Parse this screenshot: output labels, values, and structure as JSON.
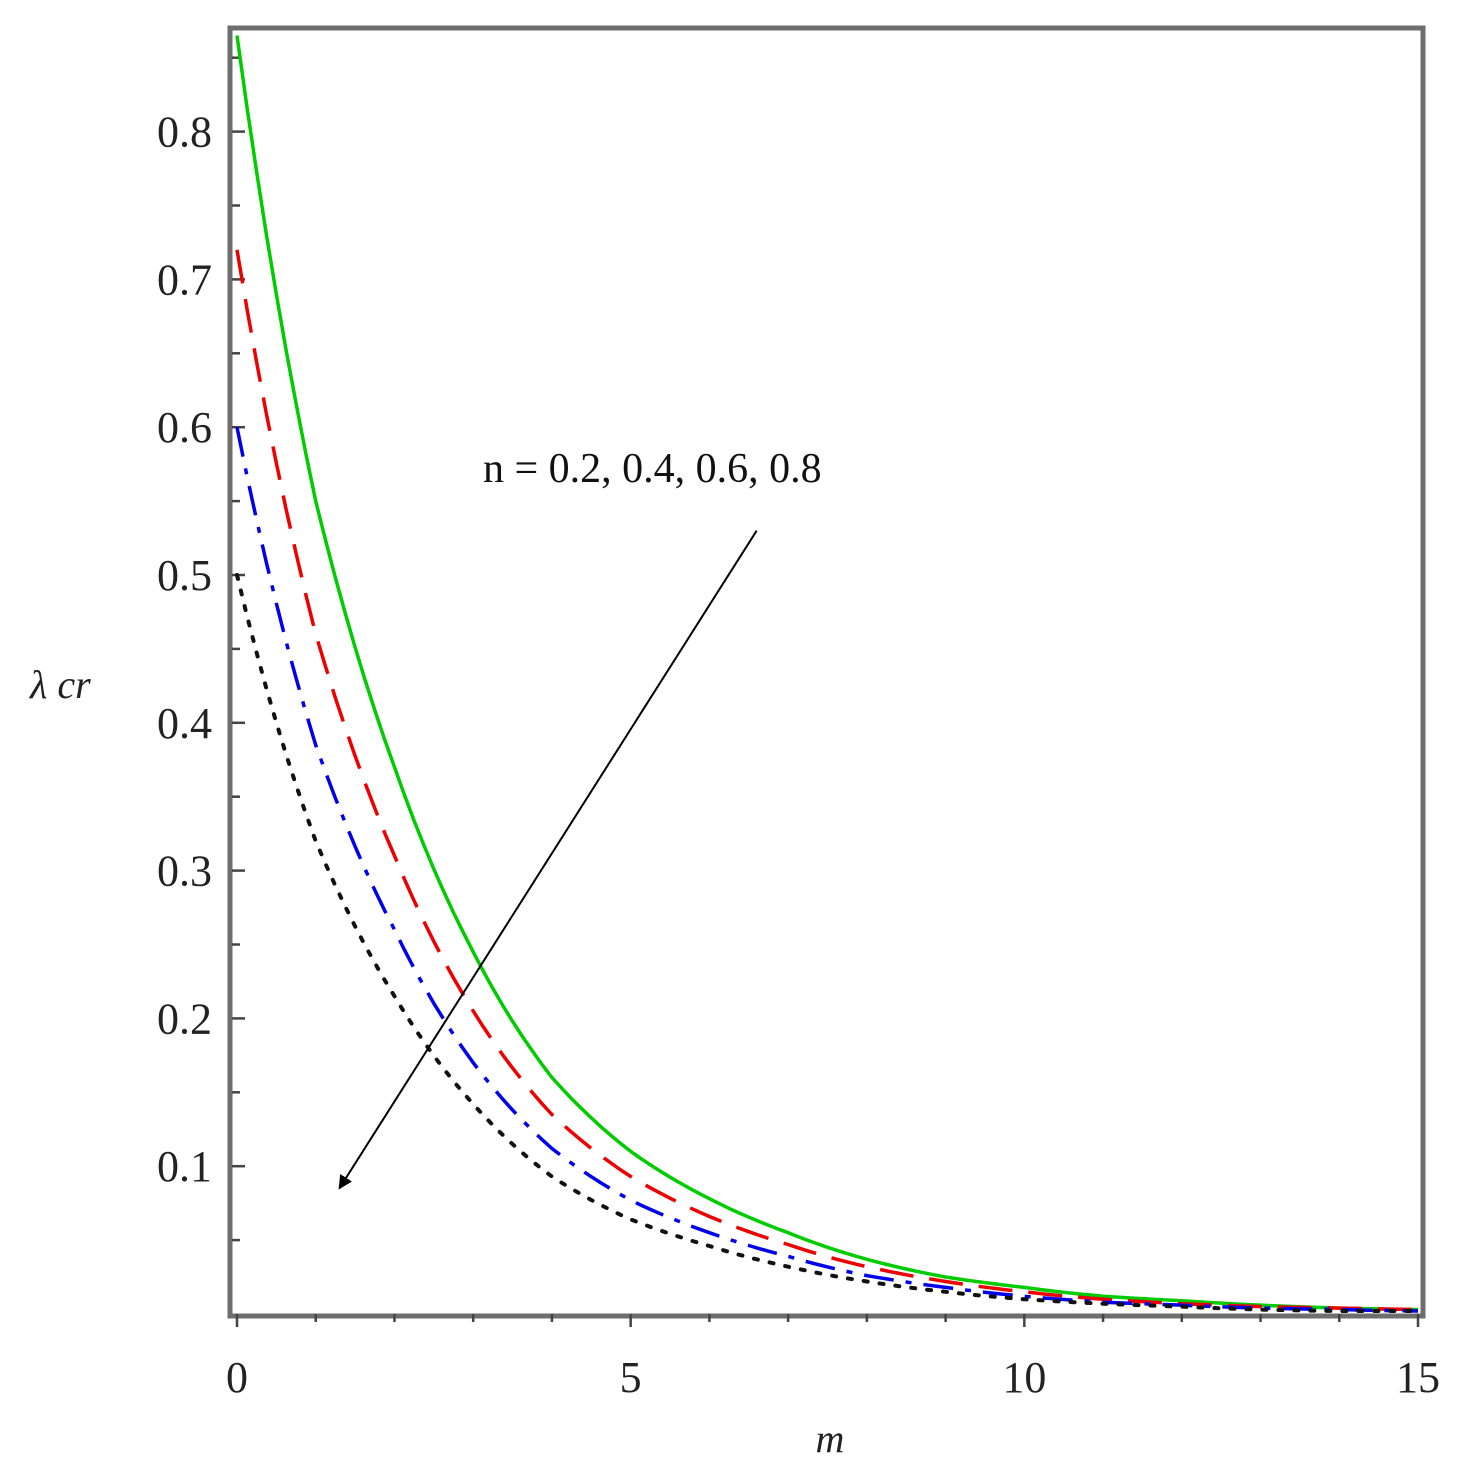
{
  "chart_data": {
    "type": "line",
    "xlabel": "m",
    "ylabel": "λ cr",
    "xlim": [
      0,
      15
    ],
    "ylim": [
      0,
      0.87
    ],
    "x_ticks": [
      0,
      5,
      10,
      15
    ],
    "y_ticks": [
      0.1,
      0.2,
      0.3,
      0.4,
      0.5,
      0.6,
      0.7,
      0.8
    ],
    "x_tick_labels": [
      "0",
      "5",
      "10",
      "15"
    ],
    "y_tick_labels": [
      "0.1",
      "0.2",
      "0.3",
      "0.4",
      "0.5",
      "0.6",
      "0.7",
      "0.8"
    ],
    "grid": false,
    "annotation": {
      "text": "n = 0.2, 0.4, 0.6, 0.8",
      "arrow_from": [
        6.6,
        0.53
      ],
      "arrow_to": [
        1.3,
        0.085
      ]
    },
    "series": [
      {
        "color": "#00cc00",
        "style": "solid",
        "x": [
          0,
          1,
          2,
          3,
          4,
          5,
          6,
          7,
          8,
          9,
          10,
          11,
          12,
          13,
          14,
          15
        ],
        "values": [
          0.865,
          0.55,
          0.37,
          0.245,
          0.16,
          0.11,
          0.078,
          0.055,
          0.037,
          0.025,
          0.018,
          0.012,
          0.009,
          0.006,
          0.004,
          0.003
        ]
      },
      {
        "color": "#ee0000",
        "style": "dashed",
        "x": [
          0,
          1,
          2,
          3,
          4,
          5,
          6,
          7,
          8,
          9,
          10,
          11,
          12,
          13,
          14,
          15
        ],
        "values": [
          0.72,
          0.46,
          0.31,
          0.205,
          0.135,
          0.093,
          0.066,
          0.047,
          0.032,
          0.022,
          0.015,
          0.01,
          0.007,
          0.005,
          0.004,
          0.003
        ]
      },
      {
        "color": "#0000ee",
        "style": "dashdot",
        "x": [
          0,
          1,
          2,
          3,
          4,
          5,
          6,
          7,
          8,
          9,
          10,
          11,
          12,
          13,
          14,
          15
        ],
        "values": [
          0.6,
          0.385,
          0.26,
          0.17,
          0.112,
          0.077,
          0.055,
          0.039,
          0.026,
          0.018,
          0.012,
          0.008,
          0.006,
          0.004,
          0.003,
          0.002
        ]
      },
      {
        "color": "#111111",
        "style": "dotted",
        "x": [
          0,
          1,
          2,
          3,
          4,
          5,
          6,
          7,
          8,
          9,
          10,
          11,
          12,
          13,
          14,
          15
        ],
        "values": [
          0.5,
          0.32,
          0.215,
          0.142,
          0.093,
          0.064,
          0.046,
          0.032,
          0.022,
          0.015,
          0.01,
          0.007,
          0.005,
          0.003,
          0.002,
          0.002
        ]
      }
    ]
  }
}
